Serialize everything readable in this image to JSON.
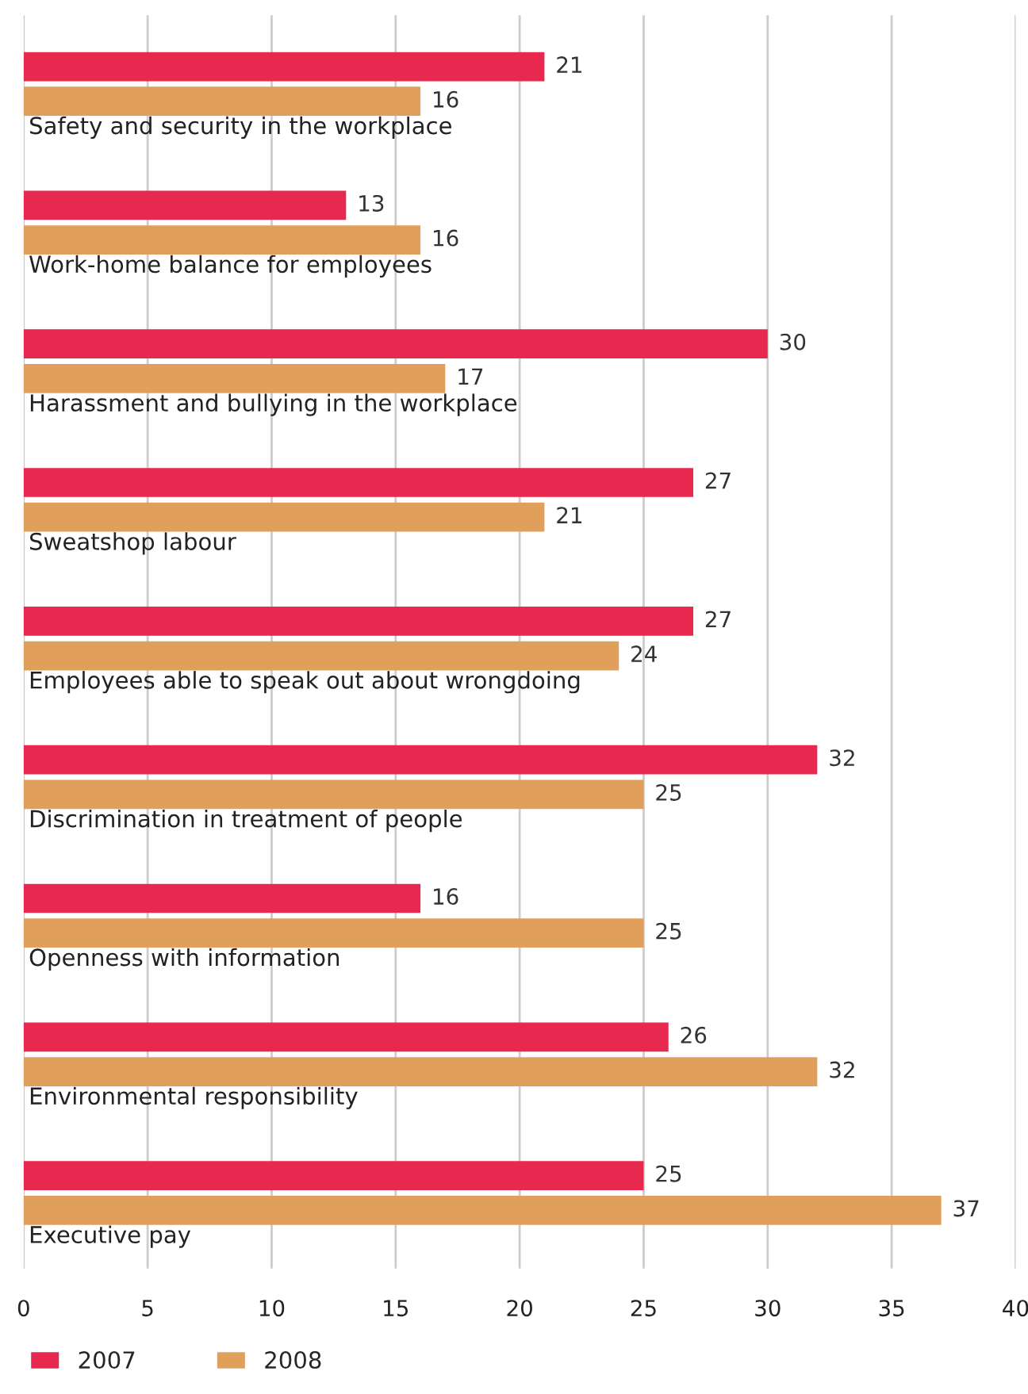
{
  "chart_data": {
    "type": "bar",
    "orientation": "horizontal",
    "categories": [
      "Safety and security in the workplace",
      "Work-home balance for employees",
      "Harassment and bullying in the workplace",
      "Sweatshop labour",
      "Employees able to speak out about wrongdoing",
      "Discrimination in treatment of people",
      "Openness with information",
      "Environmental responsibility",
      "Executive pay"
    ],
    "series": [
      {
        "name": "2007",
        "color": "#e8294f",
        "values": [
          21,
          13,
          30,
          27,
          27,
          32,
          16,
          26,
          25
        ]
      },
      {
        "name": "2008",
        "color": "#e0a05c",
        "values": [
          16,
          16,
          17,
          21,
          24,
          25,
          25,
          32,
          37
        ]
      }
    ],
    "xlim": [
      0,
      40
    ],
    "xticks": [
      0,
      5,
      10,
      15,
      20,
      25,
      30,
      35,
      40
    ],
    "grid": "x",
    "legend": "bottom left",
    "data_labels": true
  }
}
